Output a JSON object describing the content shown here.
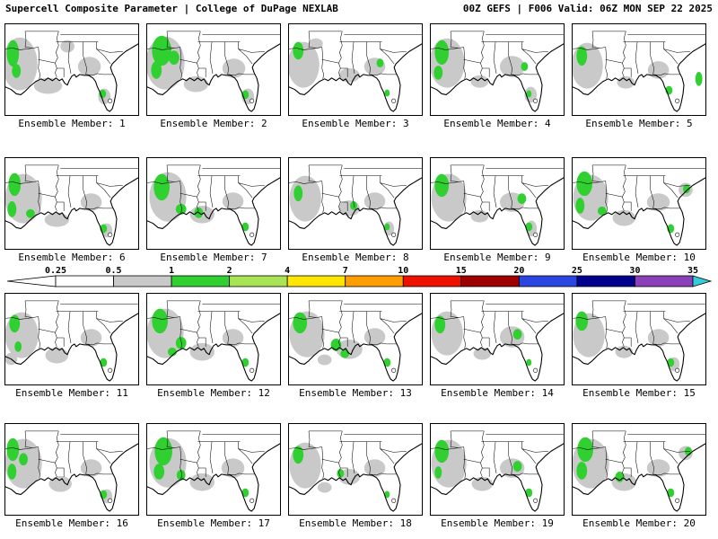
{
  "header": {
    "left": "Supercell Composite Parameter | College of DuPage NEXLAB",
    "right": "00Z GEFS | F006 Valid: 06Z MON SEP 22 2025"
  },
  "map_colors": {
    "gray": "#c9c9c9",
    "green": "#2fd02f"
  },
  "chart_data": {
    "type": "heatmap",
    "title": "Supercell Composite Parameter",
    "source": "College of DuPage NEXLAB",
    "model": "GEFS",
    "run": "00Z",
    "forecast_hour": "F006",
    "valid": "06Z MON SEP 22 2025",
    "region": "Southeastern United States and Gulf of Mexico",
    "layout": "4 rows x 5 columns of ensemble member maps, shared colorbar between rows 2 and 3",
    "legend": {
      "levels": [
        "0.25",
        "0.5",
        "1",
        "2",
        "4",
        "7",
        "10",
        "15",
        "20",
        "25",
        "30",
        "35"
      ],
      "segment_colors": [
        "#ffffff",
        "#c9c9c9",
        "#2fd02f",
        "#a8e455",
        "#ffe600",
        "#ff9e00",
        "#ee1100",
        "#9e0000",
        "#2b45e0",
        "#00008f",
        "#8b3fb8"
      ],
      "under_color": "#ffffff",
      "over_color": "#35ccd8",
      "fill_meaning": {
        "gray": "SCP 0.5-1",
        "green": "SCP 1-2"
      }
    },
    "members": [
      {
        "label": "Ensemble Member: 1",
        "gray": [
          [
            16,
            45,
            20,
            30
          ],
          [
            48,
            70,
            16,
            9
          ],
          [
            95,
            48,
            13,
            11
          ],
          [
            112,
            82,
            7,
            9
          ],
          [
            70,
            25,
            8,
            7
          ]
        ],
        "green": [
          [
            8,
            33,
            7,
            15
          ],
          [
            12,
            53,
            5,
            8
          ],
          [
            110,
            79,
            4,
            5
          ]
        ]
      },
      {
        "label": "Ensemble Member: 2",
        "gray": [
          [
            20,
            44,
            22,
            30
          ],
          [
            55,
            68,
            14,
            9
          ],
          [
            98,
            50,
            13,
            11
          ],
          [
            114,
            82,
            7,
            9
          ]
        ],
        "green": [
          [
            16,
            30,
            11,
            17
          ],
          [
            10,
            52,
            6,
            10
          ],
          [
            30,
            38,
            6,
            8
          ],
          [
            111,
            80,
            4,
            5
          ]
        ]
      },
      {
        "label": "Ensemble Member: 3",
        "gray": [
          [
            16,
            46,
            18,
            26
          ],
          [
            68,
            58,
            12,
            8
          ],
          [
            97,
            48,
            12,
            10
          ],
          [
            30,
            22,
            8,
            6
          ]
        ],
        "green": [
          [
            10,
            30,
            6,
            10
          ],
          [
            103,
            44,
            4,
            5
          ],
          [
            111,
            78,
            3,
            4
          ]
        ]
      },
      {
        "label": "Ensemble Member: 4",
        "gray": [
          [
            18,
            44,
            20,
            28
          ],
          [
            92,
            48,
            14,
            12
          ],
          [
            113,
            80,
            7,
            9
          ],
          [
            55,
            65,
            10,
            7
          ]
        ],
        "green": [
          [
            12,
            32,
            8,
            14
          ],
          [
            8,
            55,
            5,
            8
          ],
          [
            106,
            48,
            4,
            5
          ],
          [
            111,
            79,
            3,
            4
          ]
        ]
      },
      {
        "label": "Ensemble Member: 5",
        "gray": [
          [
            16,
            47,
            18,
            26
          ],
          [
            97,
            52,
            12,
            10
          ],
          [
            60,
            66,
            10,
            7
          ]
        ],
        "green": [
          [
            10,
            36,
            6,
            11
          ],
          [
            109,
            75,
            4,
            5
          ],
          [
            143,
            62,
            4,
            8
          ]
        ]
      },
      {
        "label": "Ensemble Member: 6",
        "gray": [
          [
            20,
            46,
            21,
            28
          ],
          [
            58,
            70,
            14,
            8
          ],
          [
            97,
            50,
            12,
            10
          ],
          [
            115,
            82,
            6,
            8
          ]
        ],
        "green": [
          [
            10,
            30,
            7,
            13
          ],
          [
            7,
            58,
            5,
            9
          ],
          [
            28,
            63,
            5,
            5
          ],
          [
            111,
            80,
            4,
            5
          ]
        ]
      },
      {
        "label": "Ensemble Member: 7",
        "gray": [
          [
            23,
            44,
            21,
            28
          ],
          [
            62,
            64,
            14,
            10
          ],
          [
            97,
            49,
            12,
            10
          ]
        ],
        "green": [
          [
            16,
            33,
            9,
            15
          ],
          [
            38,
            58,
            6,
            6
          ],
          [
            58,
            62,
            5,
            6
          ],
          [
            111,
            78,
            4,
            5
          ]
        ]
      },
      {
        "label": "Ensemble Member: 8",
        "gray": [
          [
            18,
            46,
            18,
            26
          ],
          [
            68,
            57,
            12,
            9
          ],
          [
            97,
            49,
            12,
            10
          ],
          [
            113,
            80,
            6,
            8
          ]
        ],
        "green": [
          [
            10,
            40,
            5,
            9
          ],
          [
            73,
            54,
            4,
            5
          ],
          [
            111,
            78,
            3,
            4
          ]
        ]
      },
      {
        "label": "Ensemble Member: 9",
        "gray": [
          [
            20,
            45,
            20,
            27
          ],
          [
            92,
            50,
            14,
            11
          ],
          [
            114,
            80,
            6,
            9
          ],
          [
            55,
            66,
            10,
            7
          ]
        ],
        "green": [
          [
            12,
            31,
            8,
            13
          ],
          [
            103,
            46,
            5,
            6
          ],
          [
            111,
            78,
            4,
            5
          ]
        ]
      },
      {
        "label": "Ensemble Member: 10",
        "gray": [
          [
            20,
            45,
            20,
            26
          ],
          [
            58,
            68,
            13,
            9
          ],
          [
            97,
            50,
            13,
            10
          ],
          [
            128,
            36,
            8,
            8
          ]
        ],
        "green": [
          [
            13,
            29,
            9,
            14
          ],
          [
            8,
            54,
            5,
            9
          ],
          [
            33,
            60,
            5,
            5
          ],
          [
            111,
            80,
            4,
            5
          ],
          [
            129,
            35,
            4,
            5
          ]
        ]
      },
      {
        "label": "Ensemble Member: 11",
        "gray": [
          [
            18,
            47,
            19,
            26
          ],
          [
            58,
            70,
            13,
            9
          ],
          [
            97,
            50,
            12,
            10
          ],
          [
            6,
            74,
            7,
            7
          ]
        ],
        "green": [
          [
            10,
            34,
            6,
            10
          ],
          [
            14,
            60,
            4,
            6
          ],
          [
            111,
            78,
            4,
            5
          ]
        ]
      },
      {
        "label": "Ensemble Member: 12",
        "gray": [
          [
            20,
            45,
            21,
            28
          ],
          [
            62,
            66,
            14,
            10
          ],
          [
            97,
            50,
            12,
            10
          ]
        ],
        "green": [
          [
            14,
            31,
            9,
            14
          ],
          [
            38,
            56,
            6,
            7
          ],
          [
            28,
            66,
            5,
            5
          ],
          [
            111,
            78,
            4,
            5
          ]
        ]
      },
      {
        "label": "Ensemble Member: 13",
        "gray": [
          [
            20,
            46,
            20,
            26
          ],
          [
            68,
            63,
            15,
            11
          ],
          [
            97,
            49,
            12,
            10
          ],
          [
            40,
            75,
            8,
            6
          ]
        ],
        "green": [
          [
            12,
            33,
            8,
            12
          ],
          [
            53,
            58,
            6,
            7
          ],
          [
            63,
            68,
            5,
            5
          ],
          [
            111,
            78,
            4,
            5
          ]
        ]
      },
      {
        "label": "Ensemble Member: 14",
        "gray": [
          [
            18,
            45,
            18,
            25
          ],
          [
            92,
            49,
            14,
            12
          ],
          [
            58,
            68,
            10,
            7
          ]
        ],
        "green": [
          [
            10,
            35,
            6,
            10
          ],
          [
            98,
            46,
            5,
            6
          ],
          [
            111,
            78,
            3,
            4
          ]
        ]
      },
      {
        "label": "Ensemble Member: 15",
        "gray": [
          [
            18,
            47,
            18,
            25
          ],
          [
            97,
            50,
            12,
            10
          ],
          [
            58,
            66,
            10,
            7
          ],
          [
            115,
            80,
            6,
            8
          ]
        ],
        "green": [
          [
            10,
            31,
            7,
            11
          ],
          [
            111,
            78,
            4,
            5
          ]
        ]
      },
      {
        "label": "Ensemble Member: 16",
        "gray": [
          [
            20,
            45,
            21,
            28
          ],
          [
            62,
            68,
            13,
            9
          ],
          [
            97,
            50,
            12,
            10
          ],
          [
            115,
            82,
            6,
            8
          ]
        ],
        "green": [
          [
            8,
            29,
            7,
            13
          ],
          [
            7,
            54,
            5,
            9
          ],
          [
            20,
            40,
            5,
            7
          ],
          [
            111,
            80,
            4,
            5
          ]
        ]
      },
      {
        "label": "Ensemble Member: 17",
        "gray": [
          [
            23,
            44,
            21,
            28
          ],
          [
            62,
            66,
            14,
            10
          ],
          [
            97,
            50,
            13,
            11
          ]
        ],
        "green": [
          [
            18,
            31,
            10,
            16
          ],
          [
            13,
            54,
            6,
            9
          ],
          [
            38,
            58,
            5,
            6
          ],
          [
            111,
            78,
            4,
            5
          ]
        ]
      },
      {
        "label": "Ensemble Member: 18",
        "gray": [
          [
            18,
            47,
            18,
            26
          ],
          [
            68,
            60,
            12,
            9
          ],
          [
            97,
            50,
            12,
            10
          ],
          [
            40,
            72,
            8,
            6
          ]
        ],
        "green": [
          [
            10,
            35,
            6,
            10
          ],
          [
            58,
            56,
            4,
            5
          ],
          [
            111,
            80,
            3,
            4
          ]
        ]
      },
      {
        "label": "Ensemble Member: 19",
        "gray": [
          [
            20,
            45,
            20,
            27
          ],
          [
            92,
            50,
            14,
            11
          ],
          [
            58,
            68,
            12,
            8
          ]
        ],
        "green": [
          [
            12,
            31,
            8,
            13
          ],
          [
            98,
            48,
            5,
            6
          ],
          [
            8,
            55,
            4,
            7
          ],
          [
            111,
            78,
            4,
            5
          ]
        ]
      },
      {
        "label": "Ensemble Member: 20",
        "gray": [
          [
            20,
            45,
            21,
            28
          ],
          [
            58,
            66,
            14,
            10
          ],
          [
            97,
            50,
            13,
            10
          ],
          [
            128,
            33,
            8,
            8
          ]
        ],
        "green": [
          [
            14,
            29,
            9,
            14
          ],
          [
            10,
            53,
            6,
            10
          ],
          [
            53,
            60,
            5,
            6
          ],
          [
            131,
            31,
            4,
            5
          ],
          [
            111,
            78,
            4,
            5
          ]
        ]
      }
    ]
  }
}
